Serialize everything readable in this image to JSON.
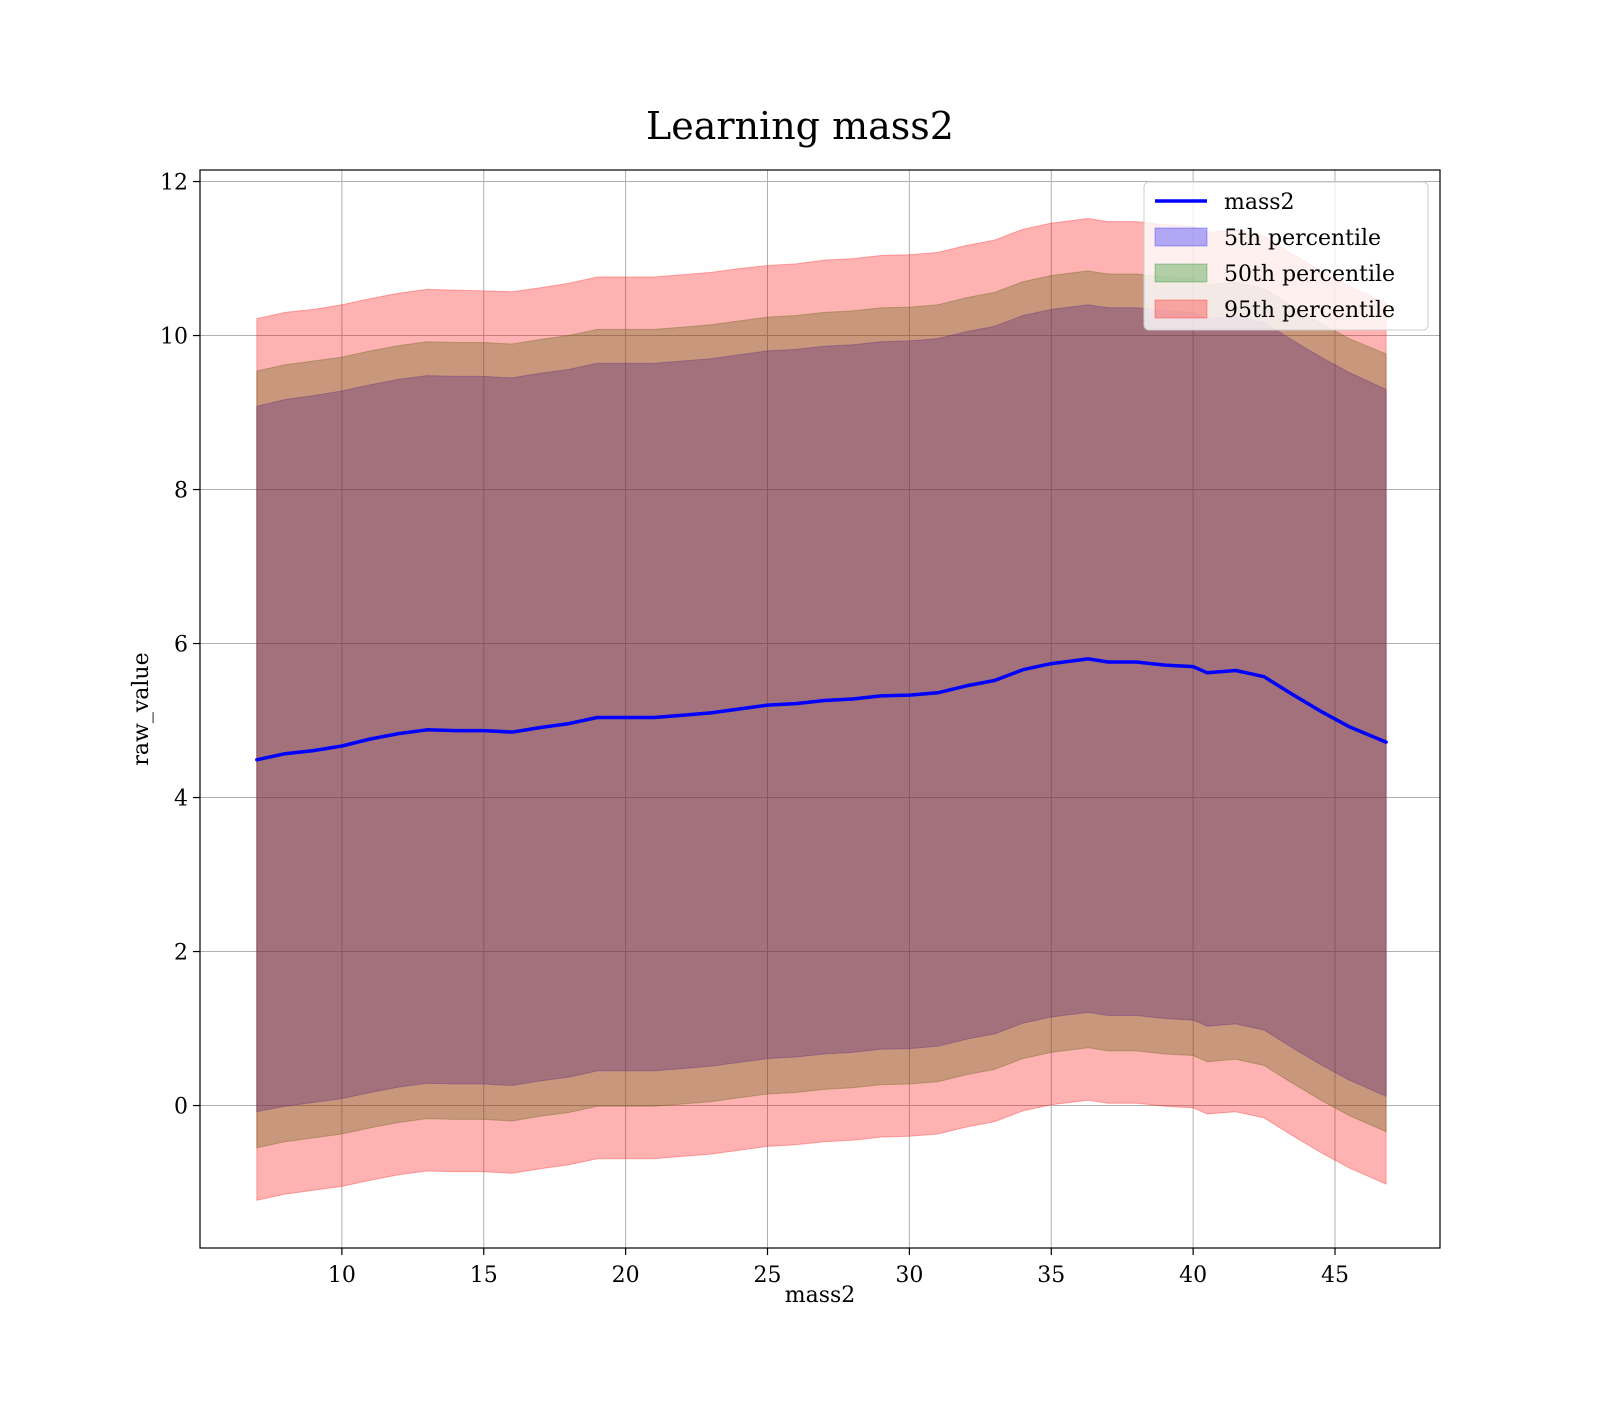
{
  "chart_data": {
    "type": "area",
    "title": "Learning mass2",
    "xlabel": "mass2",
    "ylabel": "raw_value",
    "xlim": [
      5,
      48.7
    ],
    "ylim": [
      -1.85,
      12.15
    ],
    "xticks": [
      10,
      15,
      20,
      25,
      30,
      35,
      40,
      45
    ],
    "yticks": [
      0,
      2,
      4,
      6,
      8,
      10,
      12
    ],
    "grid": true,
    "legend_position": "top-right",
    "legend": [
      "mass2",
      "5th percentile",
      "50th percentile",
      "95th percentile"
    ],
    "colors": {
      "line": "#0000ff",
      "band_5": "#0000ff",
      "band_50": "#008000",
      "band_95": "#ff0000"
    },
    "x": [
      7.0,
      8.0,
      9.0,
      10.0,
      11.0,
      12.0,
      13.0,
      14.0,
      15.0,
      16.0,
      17.0,
      18.0,
      19.0,
      20.0,
      21.0,
      22.0,
      23.0,
      24.0,
      25.0,
      26.0,
      27.0,
      28.0,
      29.0,
      30.0,
      31.0,
      32.0,
      33.0,
      34.0,
      35.0,
      36.3,
      37.0,
      38.0,
      39.0,
      40.0,
      40.5,
      41.5,
      42.5,
      43.5,
      44.5,
      45.5,
      46.8
    ],
    "series": [
      {
        "name": "mass2",
        "role": "line",
        "values": [
          4.49,
          4.57,
          4.61,
          4.67,
          4.76,
          4.83,
          4.88,
          4.87,
          4.87,
          4.85,
          4.91,
          4.96,
          5.04,
          5.04,
          5.04,
          5.07,
          5.1,
          5.15,
          5.2,
          5.22,
          5.26,
          5.28,
          5.32,
          5.33,
          5.36,
          5.45,
          5.52,
          5.66,
          5.74,
          5.8,
          5.76,
          5.76,
          5.72,
          5.7,
          5.62,
          5.65,
          5.57,
          5.34,
          5.12,
          4.92,
          4.72
        ]
      },
      {
        "name": "5th percentile",
        "role": "band",
        "upper": [
          9.08,
          9.17,
          9.22,
          9.28,
          9.36,
          9.43,
          9.48,
          9.47,
          9.47,
          9.45,
          9.51,
          9.56,
          9.64,
          9.64,
          9.64,
          9.67,
          9.7,
          9.75,
          9.8,
          9.82,
          9.86,
          9.88,
          9.92,
          9.93,
          9.96,
          10.05,
          10.12,
          10.26,
          10.34,
          10.4,
          10.36,
          10.36,
          10.32,
          10.3,
          10.22,
          10.25,
          10.17,
          9.94,
          9.72,
          9.52,
          9.3
        ],
        "lower": [
          -0.08,
          -0.01,
          0.04,
          0.09,
          0.17,
          0.24,
          0.29,
          0.28,
          0.28,
          0.26,
          0.32,
          0.37,
          0.45,
          0.45,
          0.45,
          0.48,
          0.51,
          0.56,
          0.61,
          0.63,
          0.67,
          0.69,
          0.73,
          0.74,
          0.77,
          0.86,
          0.93,
          1.07,
          1.15,
          1.21,
          1.17,
          1.17,
          1.13,
          1.11,
          1.03,
          1.06,
          0.98,
          0.75,
          0.53,
          0.33,
          0.12
        ]
      },
      {
        "name": "50th percentile",
        "role": "band",
        "upper": [
          9.54,
          9.62,
          9.67,
          9.72,
          9.8,
          9.87,
          9.92,
          9.91,
          9.91,
          9.89,
          9.95,
          10.0,
          10.08,
          10.08,
          10.08,
          10.11,
          10.14,
          10.19,
          10.24,
          10.26,
          10.3,
          10.32,
          10.36,
          10.37,
          10.4,
          10.49,
          10.56,
          10.7,
          10.78,
          10.84,
          10.8,
          10.8,
          10.76,
          10.74,
          10.66,
          10.69,
          10.61,
          10.38,
          10.16,
          9.96,
          9.76
        ],
        "lower": [
          -0.55,
          -0.47,
          -0.42,
          -0.37,
          -0.29,
          -0.22,
          -0.17,
          -0.18,
          -0.18,
          -0.2,
          -0.14,
          -0.09,
          -0.01,
          -0.01,
          -0.01,
          0.02,
          0.05,
          0.1,
          0.15,
          0.17,
          0.21,
          0.23,
          0.27,
          0.28,
          0.31,
          0.4,
          0.47,
          0.61,
          0.69,
          0.75,
          0.71,
          0.71,
          0.67,
          0.65,
          0.57,
          0.6,
          0.52,
          0.29,
          0.07,
          -0.13,
          -0.34
        ]
      },
      {
        "name": "95th percentile",
        "role": "band",
        "upper": [
          10.22,
          10.3,
          10.34,
          10.4,
          10.48,
          10.55,
          10.6,
          10.59,
          10.58,
          10.57,
          10.62,
          10.68,
          10.76,
          10.76,
          10.76,
          10.79,
          10.82,
          10.87,
          10.91,
          10.93,
          10.98,
          11.0,
          11.04,
          11.05,
          11.08,
          11.17,
          11.24,
          11.38,
          11.46,
          11.52,
          11.48,
          11.48,
          11.44,
          11.42,
          11.34,
          11.37,
          11.29,
          11.06,
          10.84,
          10.64,
          10.42
        ],
        "lower": [
          -1.23,
          -1.15,
          -1.1,
          -1.05,
          -0.97,
          -0.9,
          -0.85,
          -0.86,
          -0.86,
          -0.88,
          -0.82,
          -0.77,
          -0.69,
          -0.69,
          -0.69,
          -0.66,
          -0.63,
          -0.58,
          -0.53,
          -0.51,
          -0.47,
          -0.45,
          -0.41,
          -0.4,
          -0.37,
          -0.28,
          -0.21,
          -0.07,
          0.01,
          0.07,
          0.03,
          0.03,
          -0.01,
          -0.03,
          -0.11,
          -0.08,
          -0.16,
          -0.39,
          -0.61,
          -0.81,
          -1.02
        ]
      }
    ]
  }
}
